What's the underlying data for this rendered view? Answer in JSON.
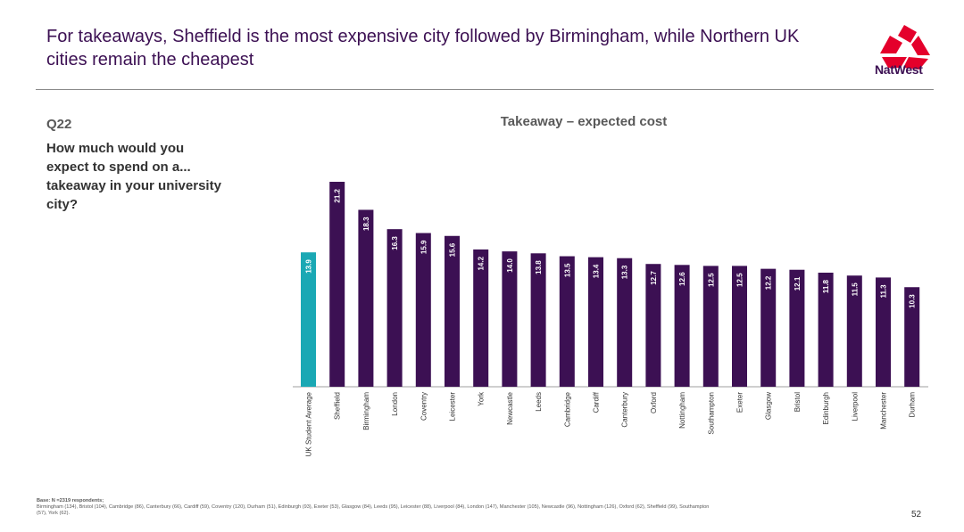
{
  "header": {
    "title": "For takeaways, Sheffield is the most expensive city followed by Birmingham, while Northern UK cities remain the cheapest",
    "brand": "NatWest"
  },
  "question": {
    "number": "Q22",
    "text": "How much would you expect to spend on a... takeaway in your university city?"
  },
  "footer": {
    "base_label": "Base: N =2319 respondents;",
    "base_detail": "Birmingham (134), Bristol (104), Cambridge (86), Canterbury (66), Cardiff (59), Coventry (120), Durham (51), Edinburgh (93), Exeter (53), Glasgow (84), Leeds (95), Leicester (88), Liverpool (84), London (147), Manchester (105), Newcastle (96), Nottingham (126), Oxford (62), Sheffield (99), Southampton (57), York (62).",
    "page_number": "52"
  },
  "colors": {
    "brand_purple": "#3c1053",
    "bar_purple": "#3c1053",
    "average_teal": "#1aa8b4",
    "logo_red": "#e4002b"
  },
  "chart_data": {
    "type": "bar",
    "title": "Takeaway – expected cost",
    "xlabel": "",
    "ylabel": "",
    "categories": [
      "UK Student Average",
      "Sheffield",
      "Birmingham",
      "London",
      "Coventry",
      "Leicester",
      "York",
      "Newcastle",
      "Leeds",
      "Cambridge",
      "Cardiff",
      "Canterbury",
      "Oxford",
      "Nottingham",
      "Southampton",
      "Exeter",
      "Glasgow",
      "Bristol",
      "Edinburgh",
      "Liverpool",
      "Manchester",
      "Durham"
    ],
    "values": [
      13.9,
      21.2,
      18.3,
      16.3,
      15.9,
      15.6,
      14.2,
      14.0,
      13.8,
      13.5,
      13.4,
      13.3,
      12.7,
      12.6,
      12.5,
      12.5,
      12.2,
      12.1,
      11.8,
      11.5,
      11.3,
      10.3
    ],
    "value_labels": [
      "13.9",
      "21.2",
      "18.3",
      "16.3",
      "15.9",
      "15.6",
      "14.2",
      "14.0",
      "13.8",
      "13.5",
      "13.4",
      "13.3",
      "12.7",
      "12.6",
      "12.5",
      "12.5",
      "12.2",
      "12.1",
      "11.8",
      "11.5",
      "11.3",
      "10.3"
    ],
    "highlight": "UK Student Average",
    "ylim": [
      0,
      21.2
    ],
    "grid": false,
    "legend": "none"
  }
}
